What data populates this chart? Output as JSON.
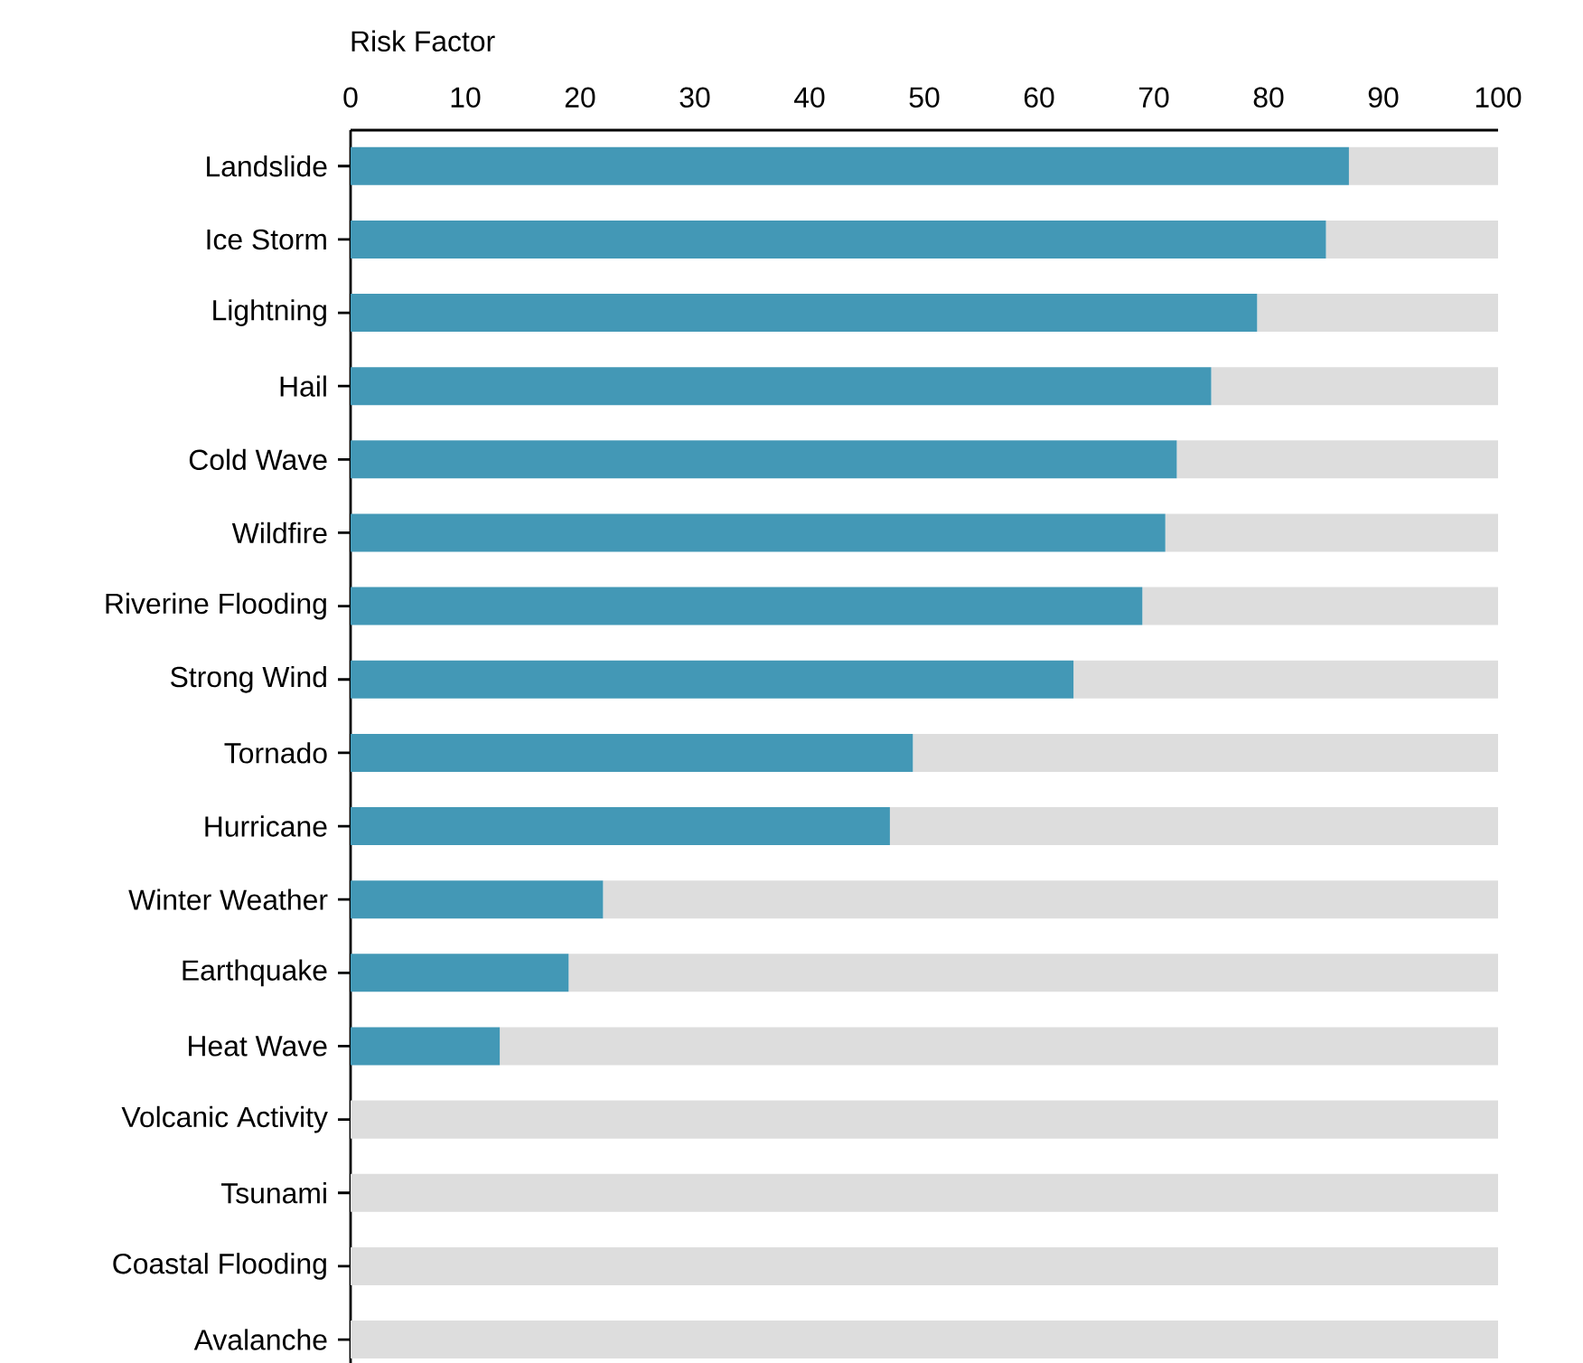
{
  "chart_data": {
    "type": "bar",
    "orientation": "horizontal",
    "stacked": true,
    "xlabel": "Risk Factor",
    "categories": [
      "Landslide",
      "Ice Storm",
      "Lightning",
      "Hail",
      "Cold Wave",
      "Wildfire",
      "Riverine Flooding",
      "Strong Wind",
      "Tornado",
      "Hurricane",
      "Winter Weather",
      "Earthquake",
      "Heat Wave",
      "Volcanic Activity",
      "Tsunami",
      "Coastal Flooding",
      "Avalanche"
    ],
    "series": [
      {
        "color": "#4398b6",
        "values": [
          87,
          85,
          79,
          75,
          72,
          71,
          69,
          63,
          49,
          47,
          22,
          19,
          13,
          0,
          0,
          0,
          0
        ]
      },
      {
        "color": "#dddddd",
        "values": [
          13,
          15,
          21,
          25,
          28,
          29,
          31,
          37,
          51,
          53,
          78,
          81,
          87,
          100,
          100,
          100,
          100
        ]
      }
    ],
    "xlim": [
      0,
      100
    ],
    "xticks": [
      0,
      10,
      20,
      30,
      40,
      50,
      60,
      70,
      80,
      90,
      100
    ],
    "grid": false
  }
}
